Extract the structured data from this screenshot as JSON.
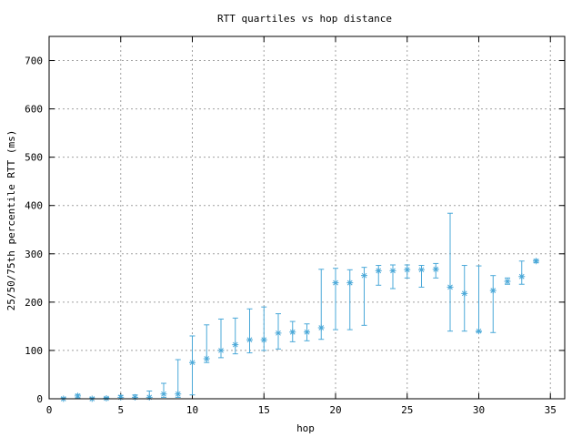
{
  "chart_data": {
    "type": "scatter",
    "title": "RTT quartiles vs hop distance",
    "xlabel": "hop",
    "ylabel": "25/50/75th percentile RTT (ms)",
    "xlim": [
      0,
      36
    ],
    "ylim": [
      0,
      750
    ],
    "xticks": [
      0,
      5,
      10,
      15,
      20,
      25,
      30,
      35
    ],
    "yticks": [
      0,
      100,
      200,
      300,
      400,
      500,
      600,
      700
    ],
    "grid": true,
    "series_color": "#4aa8d8",
    "marker": "asterisk",
    "points": [
      {
        "hop": 1,
        "p25": 0,
        "median": 0,
        "p75": 2
      },
      {
        "hop": 2,
        "p25": 2,
        "median": 6,
        "p75": 9
      },
      {
        "hop": 3,
        "p25": 0,
        "median": 0,
        "p75": 2
      },
      {
        "hop": 4,
        "p25": 0,
        "median": 1,
        "p75": 3
      },
      {
        "hop": 5,
        "p25": 0,
        "median": 3,
        "p75": 7
      },
      {
        "hop": 6,
        "p25": 0,
        "median": 3,
        "p75": 8
      },
      {
        "hop": 7,
        "p25": 0,
        "median": 3,
        "p75": 16
      },
      {
        "hop": 8,
        "p25": 3,
        "median": 10,
        "p75": 32
      },
      {
        "hop": 9,
        "p25": 3,
        "median": 10,
        "p75": 81
      },
      {
        "hop": 10,
        "p25": 8,
        "median": 75,
        "p75": 130
      },
      {
        "hop": 11,
        "p25": 75,
        "median": 83,
        "p75": 153
      },
      {
        "hop": 12,
        "p25": 85,
        "median": 100,
        "p75": 165
      },
      {
        "hop": 13,
        "p25": 93,
        "median": 112,
        "p75": 167
      },
      {
        "hop": 14,
        "p25": 95,
        "median": 122,
        "p75": 186
      },
      {
        "hop": 15,
        "p25": 100,
        "median": 122,
        "p75": 190
      },
      {
        "hop": 16,
        "p25": 103,
        "median": 136,
        "p75": 176
      },
      {
        "hop": 17,
        "p25": 118,
        "median": 138,
        "p75": 160
      },
      {
        "hop": 18,
        "p25": 120,
        "median": 138,
        "p75": 155
      },
      {
        "hop": 19,
        "p25": 123,
        "median": 147,
        "p75": 268
      },
      {
        "hop": 20,
        "p25": 143,
        "median": 240,
        "p75": 270
      },
      {
        "hop": 21,
        "p25": 143,
        "median": 240,
        "p75": 267
      },
      {
        "hop": 22,
        "p25": 152,
        "median": 255,
        "p75": 272
      },
      {
        "hop": 23,
        "p25": 235,
        "median": 265,
        "p75": 276
      },
      {
        "hop": 24,
        "p25": 228,
        "median": 265,
        "p75": 277
      },
      {
        "hop": 25,
        "p25": 250,
        "median": 267,
        "p75": 277
      },
      {
        "hop": 26,
        "p25": 231,
        "median": 267,
        "p75": 276
      },
      {
        "hop": 27,
        "p25": 250,
        "median": 268,
        "p75": 280
      },
      {
        "hop": 28,
        "p25": 140,
        "median": 231,
        "p75": 384
      },
      {
        "hop": 29,
        "p25": 140,
        "median": 218,
        "p75": 276
      },
      {
        "hop": 30,
        "p25": 138,
        "median": 140,
        "p75": 275
      },
      {
        "hop": 31,
        "p25": 137,
        "median": 224,
        "p75": 255
      },
      {
        "hop": 32,
        "p25": 237,
        "median": 243,
        "p75": 250
      },
      {
        "hop": 33,
        "p25": 237,
        "median": 253,
        "p75": 285
      },
      {
        "hop": 34,
        "p25": 282,
        "median": 285,
        "p75": 288
      }
    ]
  }
}
